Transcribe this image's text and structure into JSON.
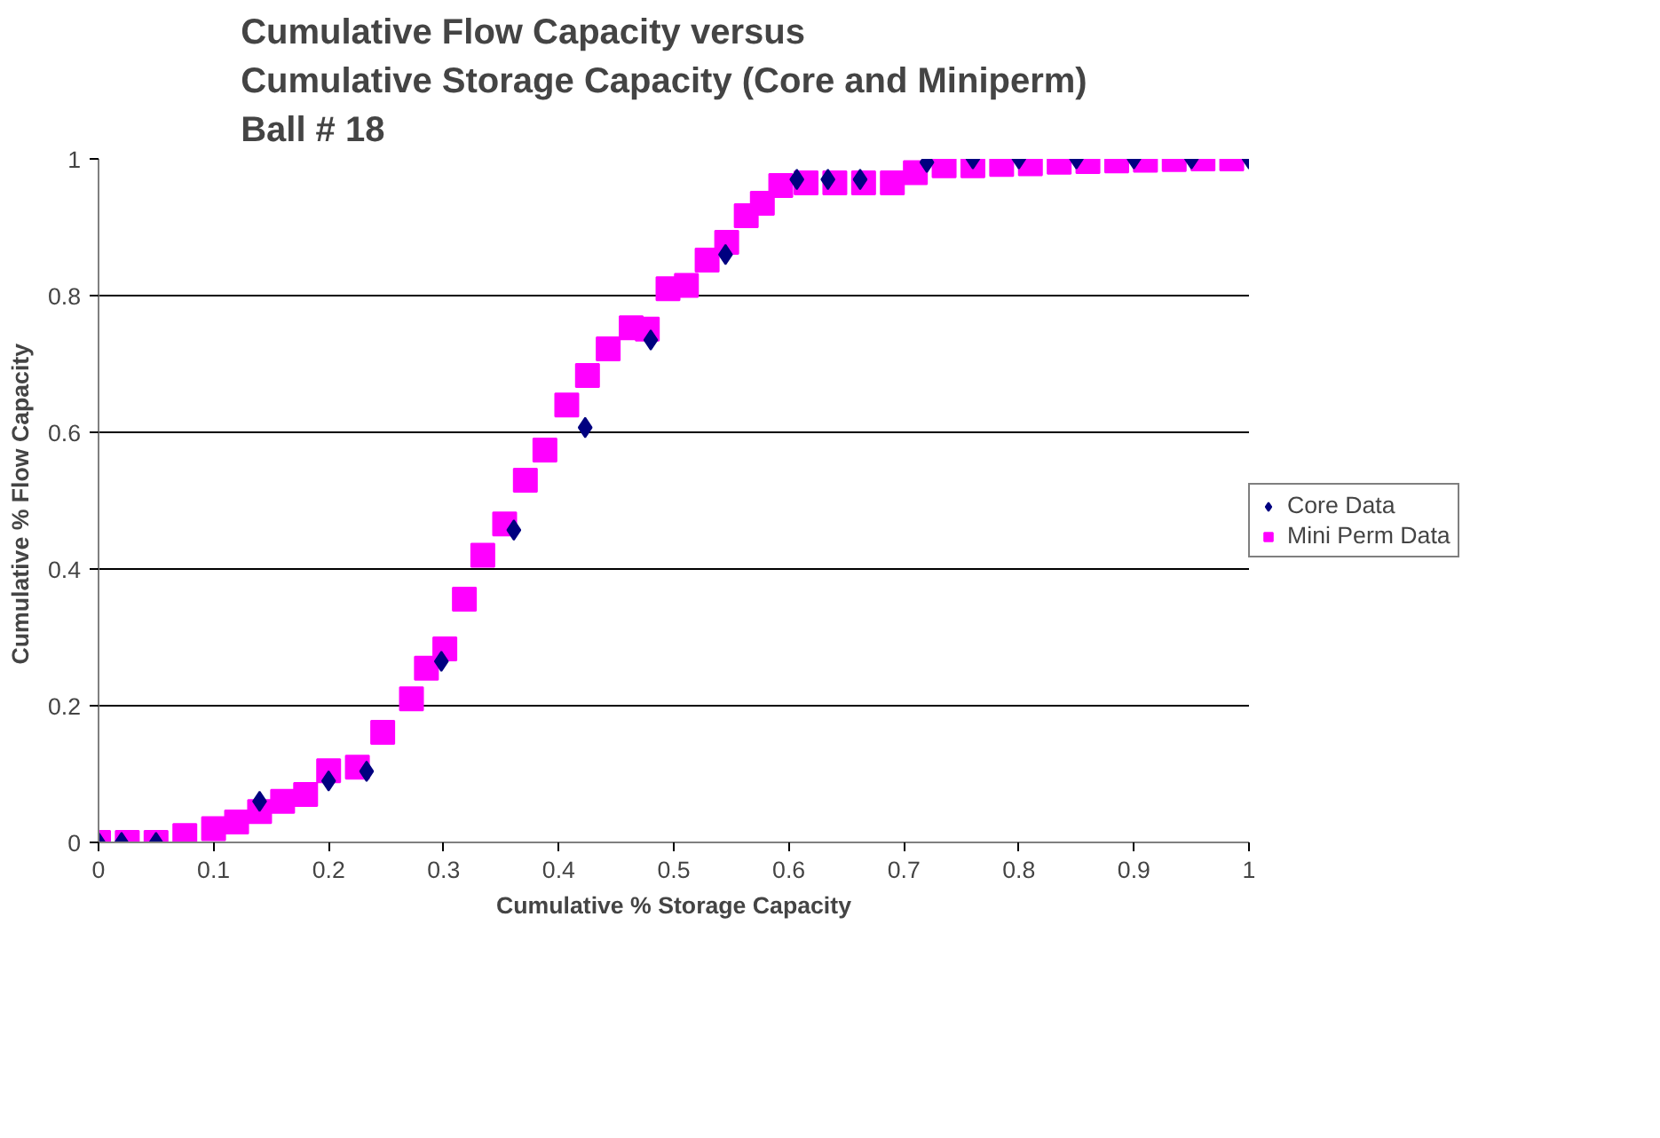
{
  "chart_data": {
    "type": "scatter",
    "title": "Cumulative Flow Capacity versus\nCumulative Storage Capacity   (Core and Miniperm)\nBall # 18",
    "xlabel": "Cumulative % Storage Capacity",
    "ylabel": "Cumulative %  Flow Capacity",
    "xlim": [
      0,
      1
    ],
    "ylim": [
      0,
      1
    ],
    "xticks": [
      0,
      0.1,
      0.2,
      0.3,
      0.4,
      0.5,
      0.6,
      0.7,
      0.8,
      0.9,
      1
    ],
    "yticks": [
      0,
      0.2,
      0.4,
      0.6,
      0.8,
      1
    ],
    "grid": "y",
    "legend": "right",
    "series": [
      {
        "name": "Core Data",
        "color": "#000080",
        "marker": "diamond",
        "x": [
          0,
          0.02,
          0.05,
          0.14,
          0.2,
          0.233,
          0.298,
          0.361,
          0.423,
          0.48,
          0.545,
          0.607,
          0.634,
          0.662,
          0.72,
          0.76,
          0.8,
          0.85,
          0.9,
          0.95,
          1
        ],
        "values": [
          0,
          0,
          0,
          0.06,
          0.09,
          0.104,
          0.265,
          0.457,
          0.607,
          0.735,
          0.86,
          0.97,
          0.97,
          0.97,
          0.995,
          1,
          1,
          1,
          1,
          1,
          1
        ]
      },
      {
        "name": "Mini Perm Data",
        "color": "#ff00ff",
        "marker": "square",
        "x": [
          0,
          0.025,
          0.05,
          0.075,
          0.1,
          0.12,
          0.14,
          0.16,
          0.18,
          0.2,
          0.225,
          0.247,
          0.272,
          0.285,
          0.301,
          0.318,
          0.334,
          0.353,
          0.371,
          0.388,
          0.407,
          0.425,
          0.443,
          0.463,
          0.477,
          0.495,
          0.511,
          0.529,
          0.546,
          0.563,
          0.577,
          0.593,
          0.615,
          0.64,
          0.665,
          0.69,
          0.71,
          0.735,
          0.76,
          0.785,
          0.81,
          0.835,
          0.86,
          0.885,
          0.91,
          0.935,
          0.96,
          0.985
        ],
        "values": [
          0,
          0,
          0,
          0.01,
          0.02,
          0.03,
          0.045,
          0.06,
          0.07,
          0.105,
          0.11,
          0.161,
          0.21,
          0.255,
          0.283,
          0.356,
          0.42,
          0.466,
          0.53,
          0.574,
          0.64,
          0.683,
          0.722,
          0.753,
          0.751,
          0.81,
          0.815,
          0.852,
          0.878,
          0.917,
          0.935,
          0.961,
          0.965,
          0.965,
          0.965,
          0.965,
          0.98,
          0.99,
          0.99,
          0.992,
          0.993,
          0.995,
          0.996,
          0.997,
          0.998,
          0.999,
          1,
          1
        ]
      }
    ]
  }
}
